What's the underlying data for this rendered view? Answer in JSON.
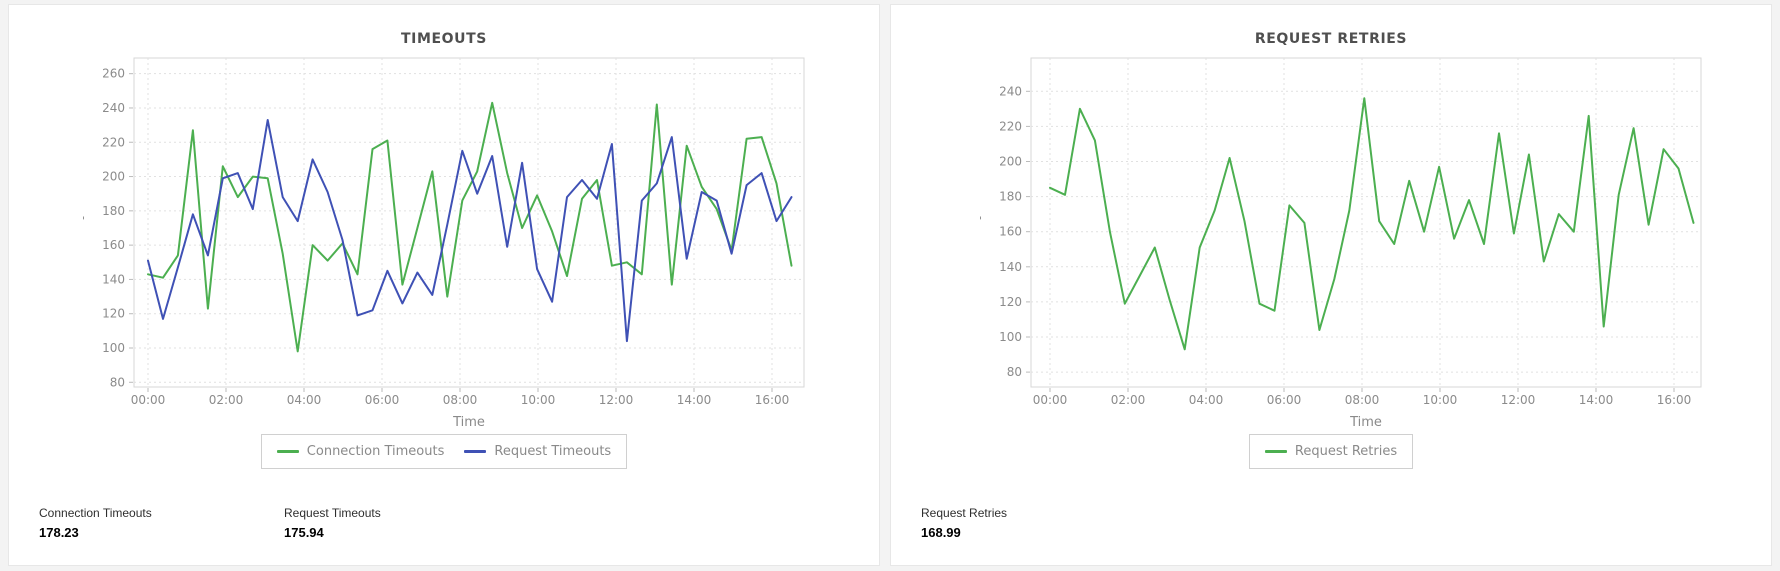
{
  "chart_data": [
    {
      "type": "line",
      "title": "TIMEOUTS",
      "xlabel": "Time",
      "ylabel_mark": "'",
      "x_range": [
        "00:00",
        "16:40"
      ],
      "x_tick_labels": [
        "00:00",
        "02:00",
        "04:00",
        "06:00",
        "08:00",
        "10:00",
        "12:00",
        "14:00",
        "16:00"
      ],
      "y_ticks": [
        260,
        240,
        220,
        200,
        180,
        160,
        140,
        120,
        100,
        80
      ],
      "ylim": [
        77,
        269
      ],
      "grid": true,
      "legend_position": "bottom",
      "series": [
        {
          "name": "Connection Timeouts",
          "color": "#4caf50",
          "values": [
            143,
            141,
            154,
            227,
            123,
            206,
            188,
            200,
            199,
            155,
            98,
            160,
            151,
            161,
            143,
            216,
            221,
            137,
            170,
            203,
            130,
            186,
            203,
            243,
            202,
            170,
            189,
            168,
            142,
            187,
            198,
            148,
            150,
            143,
            242,
            137,
            218,
            194,
            181,
            157,
            222,
            223,
            196,
            148
          ]
        },
        {
          "name": "Request Timeouts",
          "color": "#3f51b5",
          "values": [
            151,
            117,
            147,
            178,
            154,
            199,
            202,
            181,
            233,
            188,
            174,
            210,
            191,
            163,
            119,
            122,
            145,
            126,
            144,
            131,
            172,
            215,
            190,
            212,
            159,
            208,
            146,
            127,
            188,
            198,
            187,
            219,
            104,
            186,
            196,
            223,
            152,
            191,
            186,
            155,
            195,
            202,
            174,
            188
          ]
        }
      ],
      "stats": [
        {
          "label": "Connection Timeouts",
          "value": "178.23"
        },
        {
          "label": "Request Timeouts",
          "value": "175.94"
        }
      ]
    },
    {
      "type": "line",
      "title": "REQUEST RETRIES",
      "xlabel": "Time",
      "ylabel_mark": "'",
      "x_range": [
        "00:00",
        "16:25"
      ],
      "x_tick_labels": [
        "00:00",
        "02:00",
        "04:00",
        "06:00",
        "08:00",
        "10:00",
        "12:00",
        "14:00",
        "16:00"
      ],
      "y_ticks": [
        240,
        220,
        200,
        180,
        160,
        140,
        120,
        100,
        80
      ],
      "ylim": [
        72,
        259
      ],
      "grid": true,
      "legend_position": "bottom",
      "series": [
        {
          "name": "Request Retries",
          "color": "#4caf50",
          "values": [
            185,
            181,
            230,
            212,
            160,
            119,
            135,
            151,
            121,
            93,
            151,
            172,
            202,
            166,
            119,
            115,
            175,
            165,
            104,
            133,
            172,
            236,
            166,
            153,
            189,
            160,
            197,
            156,
            178,
            153,
            216,
            159,
            204,
            143,
            170,
            160,
            226,
            106,
            181,
            219,
            164,
            207,
            196,
            165
          ]
        }
      ],
      "stats": [
        {
          "label": "Request Retries",
          "value": "168.99"
        }
      ]
    }
  ],
  "style": {
    "grid_color": "#e1e1e1",
    "border_color": "#d7d7d7",
    "tick_color": "#bbbbbb"
  }
}
